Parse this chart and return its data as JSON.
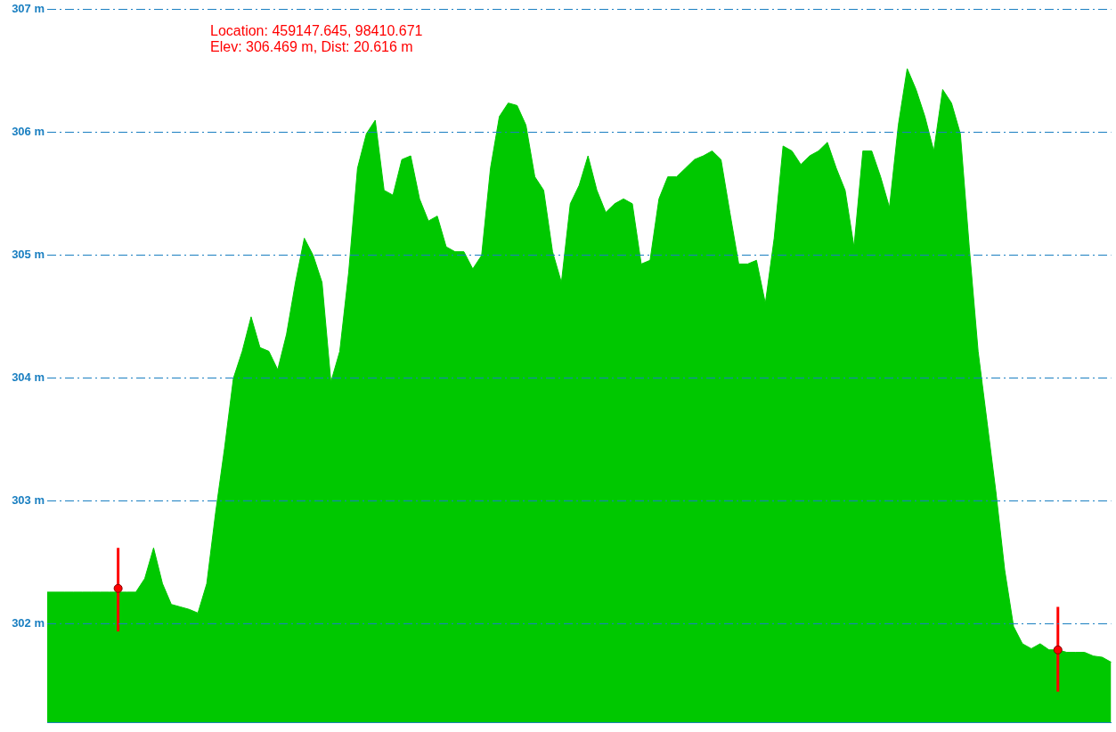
{
  "chart_data": {
    "type": "area",
    "categories": [
      null,
      null,
      null,
      null,
      null,
      null,
      null,
      null,
      null,
      null,
      null,
      null,
      null,
      null,
      null,
      null,
      null,
      null,
      null,
      null,
      null,
      null,
      null,
      null,
      null,
      null,
      null,
      null,
      null,
      null,
      null,
      null,
      null,
      null,
      null,
      null,
      null,
      null,
      null,
      null,
      null,
      null,
      null,
      null,
      null,
      null,
      null,
      null,
      null,
      null,
      null,
      null,
      null,
      null,
      null,
      null,
      null,
      null,
      null,
      null,
      null,
      null,
      null,
      null,
      null,
      null,
      null,
      null,
      null,
      null,
      null,
      null,
      null,
      null,
      null,
      null,
      null,
      null,
      null,
      null,
      null,
      null,
      null,
      null,
      null,
      null,
      null,
      null,
      null,
      null,
      null,
      null,
      null,
      null,
      null,
      null,
      null,
      null,
      null,
      null,
      null,
      null,
      null,
      null,
      null,
      null,
      null,
      null,
      null,
      null,
      null,
      null,
      null,
      null,
      null,
      null,
      null,
      null,
      null,
      null,
      null
    ],
    "series": [
      {
        "color": "#00c800",
        "values": [
          302.26,
          302.26,
          302.26,
          302.26,
          302.26,
          302.26,
          302.26,
          302.26,
          302.26,
          302.26,
          302.26,
          302.37,
          302.62,
          302.33,
          302.16,
          302.14,
          302.12,
          302.09,
          302.33,
          302.91,
          303.43,
          304.0,
          304.22,
          304.5,
          304.25,
          304.22,
          304.07,
          304.36,
          304.78,
          305.14,
          305.0,
          304.78,
          303.97,
          304.22,
          304.86,
          305.71,
          305.99,
          306.1,
          305.53,
          305.49,
          305.78,
          305.81,
          305.46,
          305.28,
          305.32,
          305.07,
          305.03,
          305.03,
          304.89,
          305.0,
          305.71,
          306.13,
          306.24,
          306.22,
          306.06,
          305.64,
          305.53,
          305.03,
          304.78,
          305.42,
          305.57,
          305.81,
          305.53,
          305.35,
          305.42,
          305.46,
          305.42,
          304.93,
          304.96,
          305.46,
          305.64,
          305.64,
          305.71,
          305.78,
          305.81,
          305.85,
          305.78,
          305.35,
          304.93,
          304.93,
          304.96,
          304.61,
          305.14,
          305.89,
          305.85,
          305.74,
          305.81,
          305.85,
          305.92,
          305.71,
          305.53,
          305.07,
          305.85,
          305.85,
          305.64,
          305.39,
          306.06,
          306.52,
          306.35,
          306.13,
          305.85,
          306.35,
          306.24,
          305.99,
          305.07,
          304.22,
          303.65,
          303.08,
          302.44,
          301.98,
          301.84,
          301.8,
          301.84,
          301.79,
          301.79,
          301.77,
          301.77,
          301.77,
          301.74,
          301.73,
          301.69
        ]
      },
      {
        "type": "scatter",
        "color": "#ff0000",
        "marker": "circle",
        "values": [
          null,
          null,
          null,
          null,
          null,
          null,
          null,
          null,
          302.29,
          null,
          null,
          null,
          null,
          null,
          null,
          null,
          null,
          null,
          null,
          null,
          null,
          null,
          null,
          null,
          null,
          null,
          null,
          null,
          null,
          null,
          null,
          null,
          null,
          null,
          null,
          null,
          null,
          null,
          null,
          null,
          null,
          null,
          null,
          null,
          null,
          null,
          null,
          null,
          null,
          null,
          null,
          null,
          null,
          null,
          null,
          null,
          null,
          null,
          null,
          null,
          null,
          null,
          null,
          null,
          null,
          null,
          null,
          null,
          null,
          null,
          null,
          null,
          null,
          null,
          null,
          null,
          null,
          null,
          null,
          null,
          null,
          null,
          null,
          null,
          null,
          null,
          null,
          null,
          null,
          null,
          null,
          null,
          null,
          null,
          null,
          null,
          null,
          null,
          null,
          null,
          null,
          null,
          null,
          null,
          null,
          null,
          null,
          null,
          null,
          null,
          null,
          null,
          null,
          null,
          301.79,
          null,
          null,
          null,
          null,
          null,
          null
        ],
        "errors": [
          null,
          null,
          null,
          null,
          null,
          null,
          null,
          null,
          [
            301.94,
            302.62
          ],
          null,
          null,
          null,
          null,
          null,
          null,
          null,
          null,
          null,
          null,
          null,
          null,
          null,
          null,
          null,
          null,
          null,
          null,
          null,
          null,
          null,
          null,
          null,
          null,
          null,
          null,
          null,
          null,
          null,
          null,
          null,
          null,
          null,
          null,
          null,
          null,
          null,
          null,
          null,
          null,
          null,
          null,
          null,
          null,
          null,
          null,
          null,
          null,
          null,
          null,
          null,
          null,
          null,
          null,
          null,
          null,
          null,
          null,
          null,
          null,
          null,
          null,
          null,
          null,
          null,
          null,
          null,
          null,
          null,
          null,
          null,
          null,
          null,
          null,
          null,
          null,
          null,
          null,
          null,
          null,
          null,
          null,
          null,
          null,
          null,
          null,
          null,
          null,
          null,
          null,
          null,
          null,
          null,
          null,
          null,
          null,
          null,
          null,
          null,
          null,
          null,
          null,
          null,
          null,
          null,
          [
            301.45,
            302.14
          ],
          null,
          null,
          null,
          null,
          null,
          null
        ]
      }
    ],
    "ylim": [
      301.2,
      307
    ],
    "yticks": [
      {
        "value": 302,
        "label": "302 m"
      },
      {
        "value": 303,
        "label": "303 m"
      },
      {
        "value": 304,
        "label": "304 m"
      },
      {
        "value": 305,
        "label": "305 m"
      },
      {
        "value": 306,
        "label": "306 m"
      },
      {
        "value": 307,
        "label": "307 m"
      }
    ],
    "grid": "y",
    "tick_labels": "y",
    "legend": false,
    "annotations": [
      "Location: 459147.645, 98410.671",
      "Elev: 306.469 m, Dist: 20.616 m"
    ]
  }
}
